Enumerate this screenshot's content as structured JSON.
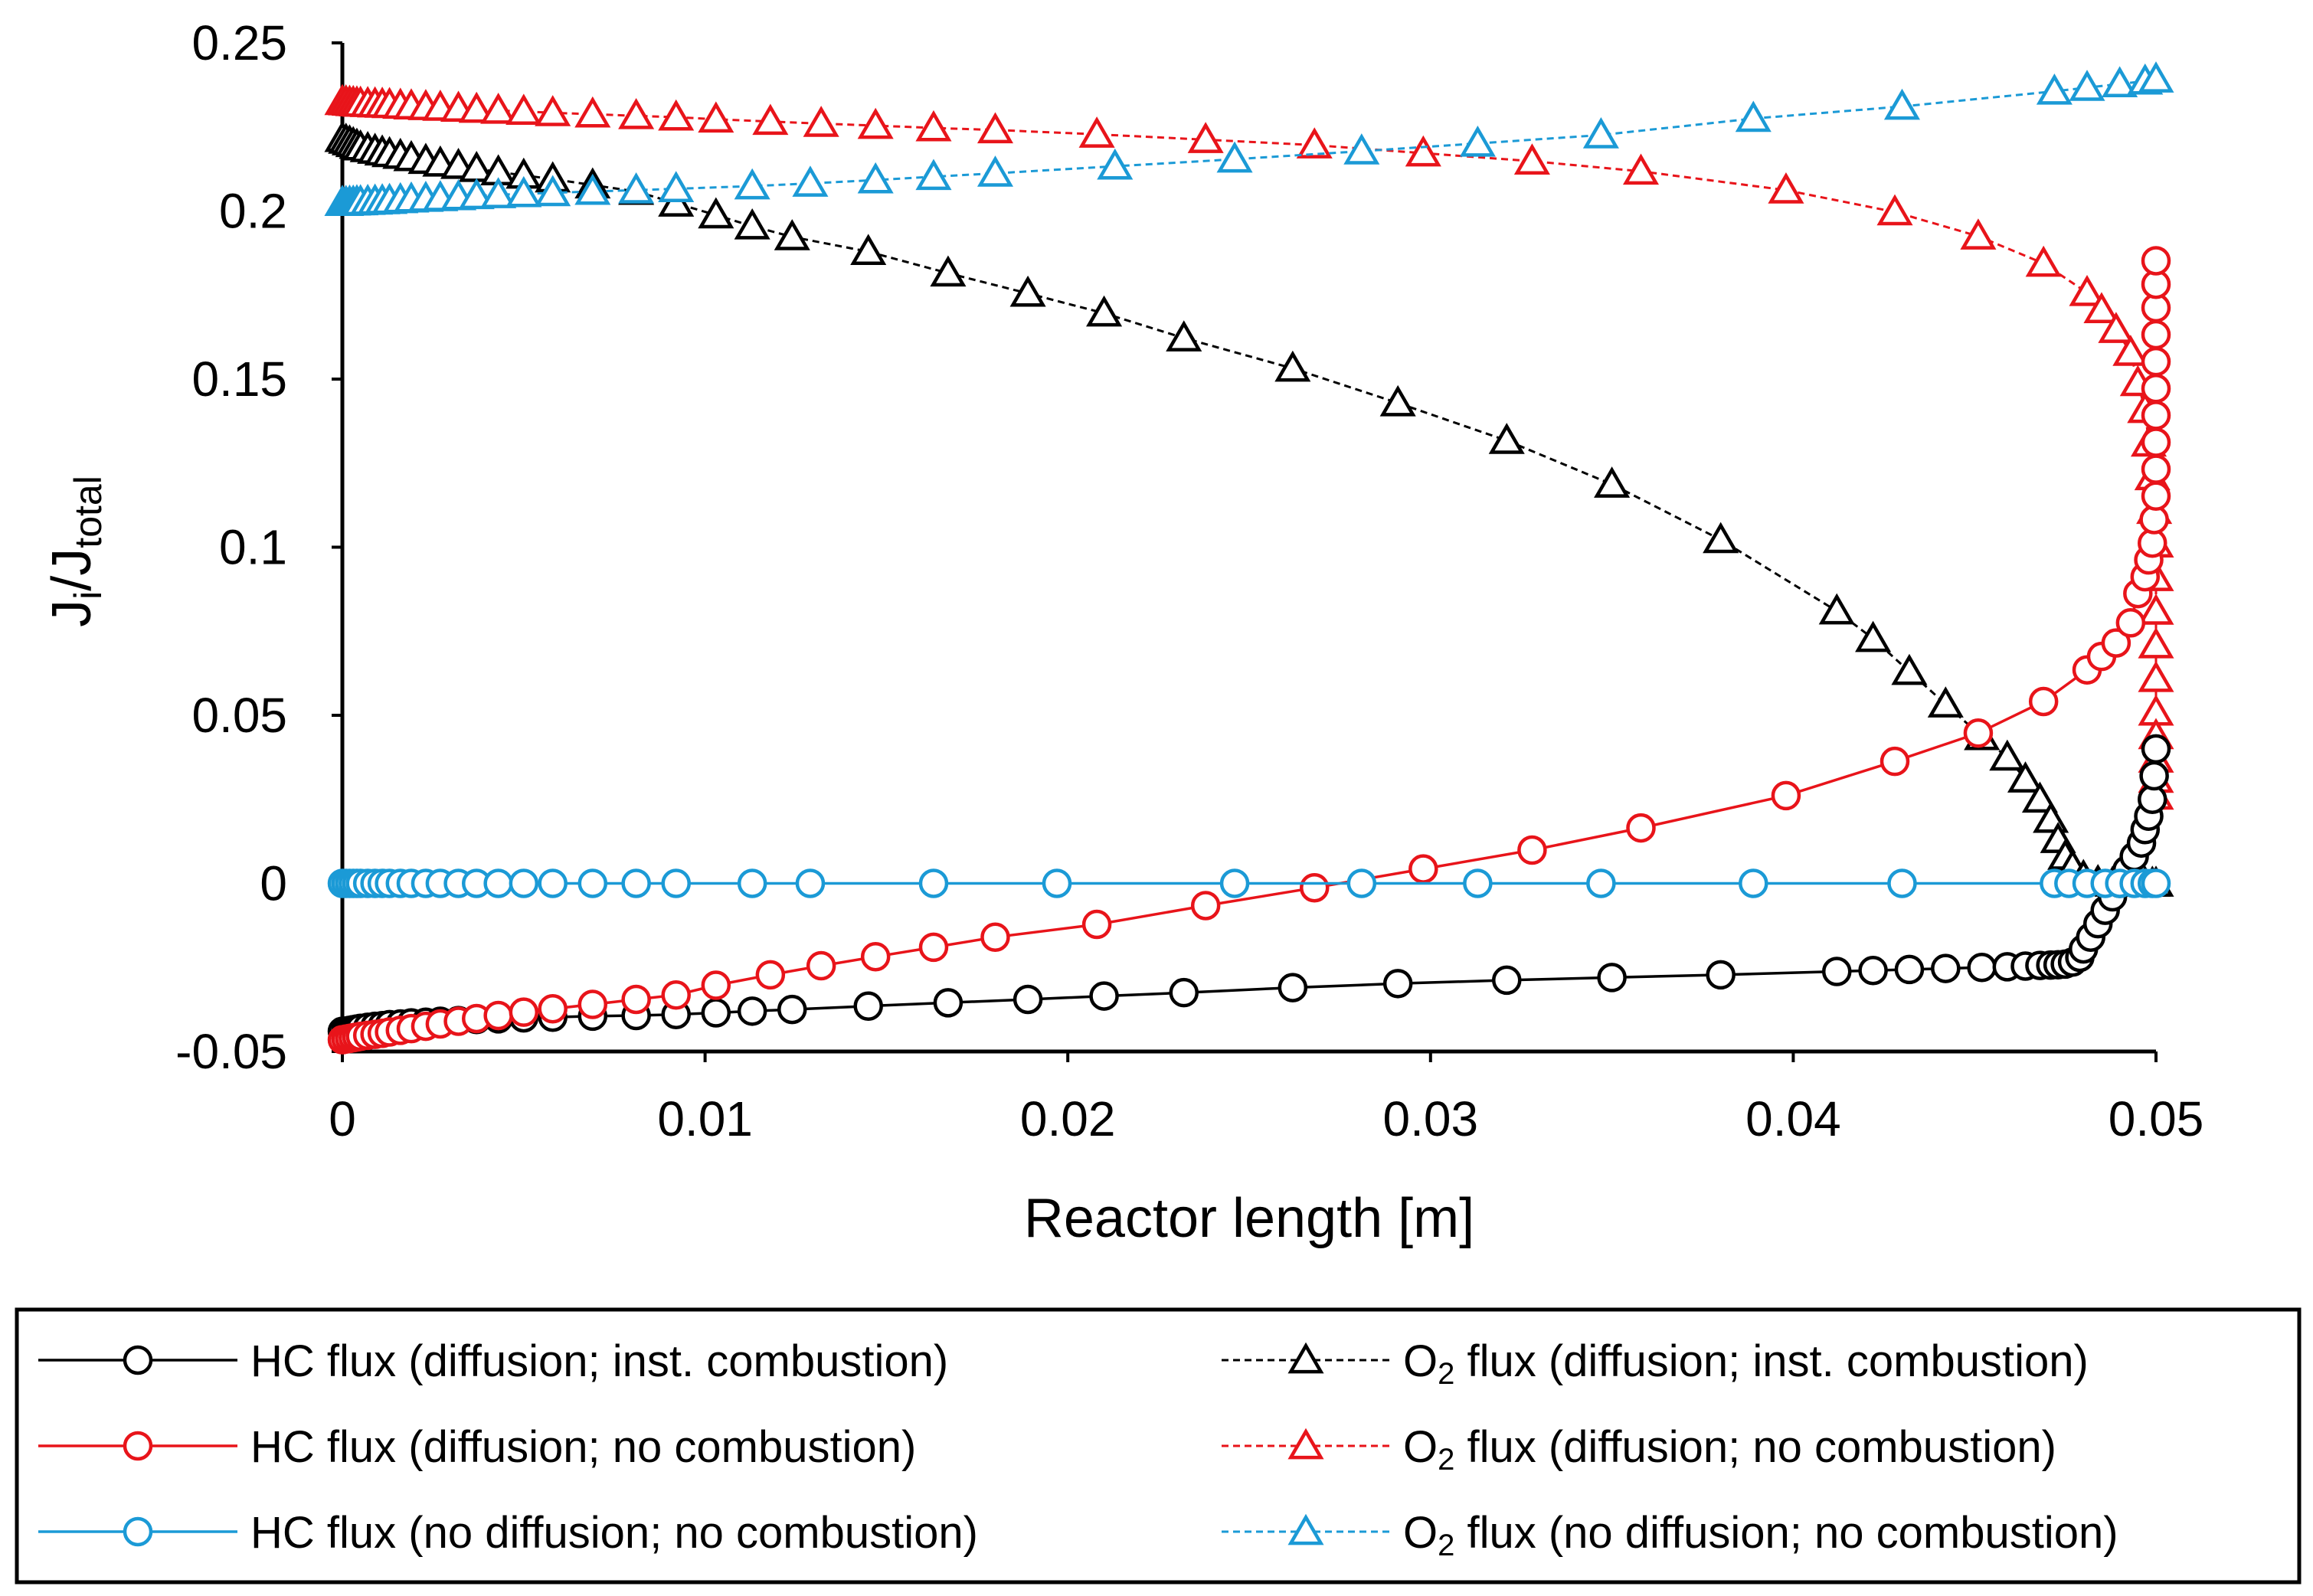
{
  "colors": {
    "inst": "#000000",
    "nocomb": "#e8141a",
    "nodiff": "#1b9ad6"
  },
  "chart_data": {
    "type": "line",
    "title": "",
    "xlabel": "Reactor length [m]",
    "ylabel_main": "J",
    "ylabel_sub1": "i",
    "ylabel_sep": "/J",
    "ylabel_sub2": "total",
    "xlim": [
      0,
      0.05
    ],
    "ylim": [
      -0.05,
      0.25
    ],
    "x_ticks": [
      0,
      0.01,
      0.02,
      0.03,
      0.04,
      0.05
    ],
    "x_tick_labels": [
      "0",
      "0.01",
      "0.02",
      "0.03",
      "0.04",
      "0.05"
    ],
    "y_ticks": [
      -0.05,
      0,
      0.05,
      0.1,
      0.15,
      0.2,
      0.25
    ],
    "y_tick_labels": [
      "-0.05",
      "0",
      "0.05",
      "0.1",
      "0.15",
      "0.2",
      "0.25"
    ],
    "grid": false,
    "legend_position": "bottom",
    "series": [
      {
        "name": "HC flux (diffusion; inst. combustion)",
        "species": "HC",
        "legend_rest": " flux (diffusion; inst. combustion)",
        "color_key": "inst",
        "marker": "circle",
        "line": "solid",
        "x": [
          0,
          0.0001,
          0.0002,
          0.0003,
          0.0004,
          0.0005,
          0.0007,
          0.0009,
          0.0011,
          0.0013,
          0.0016,
          0.0019,
          0.0023,
          0.0027,
          0.0032,
          0.0037,
          0.0043,
          0.005,
          0.0058,
          0.0069,
          0.0081,
          0.0092,
          0.0103,
          0.0113,
          0.0124,
          0.0145,
          0.0167,
          0.0189,
          0.021,
          0.0232,
          0.0262,
          0.0291,
          0.0321,
          0.035,
          0.038,
          0.0412,
          0.0422,
          0.0432,
          0.0442,
          0.0452,
          0.0459,
          0.0464,
          0.0468,
          0.0471,
          0.0473,
          0.0475,
          0.0477,
          0.0479,
          0.048,
          0.0482,
          0.0484,
          0.0486,
          0.0488,
          0.049,
          0.0492,
          0.0494,
          0.0496,
          0.0497,
          0.0498,
          0.0499,
          0.04995,
          0.05
        ],
        "y": [
          -0.044,
          -0.0439,
          -0.0437,
          -0.0435,
          -0.0433,
          -0.0431,
          -0.0428,
          -0.0425,
          -0.0423,
          -0.042,
          -0.0418,
          -0.0415,
          -0.0413,
          -0.041,
          -0.0408,
          -0.0405,
          -0.0403,
          -0.04,
          -0.0398,
          -0.0395,
          -0.0393,
          -0.039,
          -0.0385,
          -0.038,
          -0.0375,
          -0.0365,
          -0.0355,
          -0.0345,
          -0.0335,
          -0.0325,
          -0.031,
          -0.0298,
          -0.0288,
          -0.028,
          -0.0272,
          -0.0262,
          -0.0259,
          -0.0256,
          -0.0253,
          -0.025,
          -0.0248,
          -0.0246,
          -0.0244,
          -0.0243,
          -0.0242,
          -0.024,
          -0.0234,
          -0.022,
          -0.0195,
          -0.016,
          -0.012,
          -0.008,
          -0.004,
          0.0,
          0.004,
          0.008,
          0.012,
          0.016,
          0.02,
          0.025,
          0.032,
          0.04
        ]
      },
      {
        "name": "HC flux (diffusion; no combustion)",
        "species": "HC",
        "legend_rest": " flux (diffusion; no combustion)",
        "color_key": "nocomb",
        "marker": "circle",
        "line": "solid",
        "x": [
          0,
          0.0001,
          0.0002,
          0.0003,
          0.0004,
          0.0005,
          0.0007,
          0.0009,
          0.0011,
          0.0013,
          0.0016,
          0.0019,
          0.0023,
          0.0027,
          0.0032,
          0.0037,
          0.0043,
          0.005,
          0.0058,
          0.0069,
          0.0081,
          0.0092,
          0.0103,
          0.0118,
          0.0132,
          0.0147,
          0.0163,
          0.018,
          0.0208,
          0.0238,
          0.0268,
          0.0298,
          0.0328,
          0.0358,
          0.0398,
          0.0428,
          0.0451,
          0.0469,
          0.0481,
          0.0485,
          0.0489,
          0.0493,
          0.0495,
          0.0497,
          0.0498,
          0.0499,
          0.04995,
          0.05,
          0.05,
          0.05,
          0.05,
          0.05,
          0.05,
          0.05,
          0.05,
          0.05,
          0.05
        ],
        "y": [
          -0.0465,
          -0.0463,
          -0.0461,
          -0.0459,
          -0.0457,
          -0.0455,
          -0.0452,
          -0.0449,
          -0.0446,
          -0.0442,
          -0.0437,
          -0.0432,
          -0.0425,
          -0.0418,
          -0.041,
          -0.0402,
          -0.0393,
          -0.0383,
          -0.0373,
          -0.036,
          -0.0345,
          -0.0332,
          -0.0303,
          -0.0272,
          -0.0245,
          -0.0218,
          -0.019,
          -0.016,
          -0.0122,
          -0.0066,
          -0.0013,
          0.0043,
          0.0099,
          0.0165,
          0.0261,
          0.0363,
          0.0447,
          0.0541,
          0.0635,
          0.0675,
          0.0715,
          0.0775,
          0.0862,
          0.0912,
          0.0962,
          0.1012,
          0.1082,
          0.1152,
          0.1232,
          0.1312,
          0.1392,
          0.1472,
          0.1552,
          0.1632,
          0.1712,
          0.1782,
          0.1852
        ]
      },
      {
        "name": "HC flux (no diffusion; no combustion)",
        "species": "HC",
        "legend_rest": " flux (no diffusion; no combustion)",
        "color_key": "nodiff",
        "marker": "circle",
        "line": "solid",
        "x": [
          0,
          0.0001,
          0.0002,
          0.0003,
          0.0004,
          0.0005,
          0.0007,
          0.0009,
          0.0011,
          0.0013,
          0.0016,
          0.0019,
          0.0023,
          0.0027,
          0.0032,
          0.0037,
          0.0043,
          0.005,
          0.0058,
          0.0069,
          0.0081,
          0.0092,
          0.0113,
          0.0129,
          0.0163,
          0.0197,
          0.0246,
          0.0281,
          0.0313,
          0.0347,
          0.0389,
          0.043,
          0.0472,
          0.0476,
          0.0481,
          0.0486,
          0.049,
          0.0494,
          0.0497,
          0.0499,
          0.05
        ],
        "y": [
          0,
          0,
          0,
          0,
          0,
          0,
          0,
          0,
          0,
          0,
          0,
          0,
          0,
          0,
          0,
          0,
          0,
          0,
          0,
          0,
          0,
          0,
          0,
          0,
          0,
          0,
          0,
          0,
          0,
          0,
          0,
          0,
          0,
          0,
          0,
          0,
          0,
          0,
          0,
          0,
          0
        ]
      },
      {
        "name": "O2 flux (diffusion; inst. combustion)",
        "species": "O",
        "legend_rest": " flux (diffusion; inst. combustion)",
        "color_key": "inst",
        "marker": "triangle",
        "line": "dashed",
        "x": [
          0,
          0.0001,
          0.0002,
          0.0003,
          0.0004,
          0.0005,
          0.0007,
          0.0009,
          0.0011,
          0.0013,
          0.0016,
          0.0019,
          0.0023,
          0.0027,
          0.0032,
          0.0037,
          0.0043,
          0.005,
          0.0058,
          0.0069,
          0.0081,
          0.0092,
          0.0103,
          0.0113,
          0.0124,
          0.0145,
          0.0167,
          0.0189,
          0.021,
          0.0232,
          0.0262,
          0.0291,
          0.0321,
          0.035,
          0.038,
          0.0412,
          0.0422,
          0.0432,
          0.0442,
          0.0452,
          0.0459,
          0.0464,
          0.0468,
          0.0471,
          0.0473,
          0.0475,
          0.0477,
          0.048,
          0.0484,
          0.0488,
          0.0492,
          0.0495,
          0.0497,
          0.0499,
          0.05
        ],
        "y": [
          0.2215,
          0.221,
          0.2205,
          0.22,
          0.2195,
          0.219,
          0.2185,
          0.218,
          0.2175,
          0.217,
          0.2165,
          0.2158,
          0.215,
          0.2142,
          0.2135,
          0.2126,
          0.2116,
          0.2106,
          0.2095,
          0.2077,
          0.2058,
          0.2023,
          0.1988,
          0.1955,
          0.1923,
          0.1879,
          0.1815,
          0.1755,
          0.1696,
          0.1622,
          0.1532,
          0.1429,
          0.1317,
          0.1187,
          0.1022,
          0.081,
          0.0728,
          0.063,
          0.0533,
          0.0436,
          0.0375,
          0.031,
          0.025,
          0.019,
          0.013,
          0.008,
          0.005,
          0.002,
          0.0005,
          0.0,
          0.0,
          0.0,
          0.0,
          0.0,
          0.0
        ]
      },
      {
        "name": "O2 flux (diffusion; no combustion)",
        "species": "O",
        "legend_rest": " flux (diffusion; no combustion)",
        "color_key": "nocomb",
        "marker": "triangle",
        "line": "dashed",
        "x": [
          0,
          0.0001,
          0.0002,
          0.0003,
          0.0004,
          0.0005,
          0.0007,
          0.0009,
          0.0011,
          0.0013,
          0.0016,
          0.0019,
          0.0023,
          0.0027,
          0.0032,
          0.0037,
          0.0043,
          0.005,
          0.0058,
          0.0069,
          0.0081,
          0.0092,
          0.0103,
          0.0118,
          0.0132,
          0.0147,
          0.0163,
          0.018,
          0.0208,
          0.0238,
          0.0268,
          0.0298,
          0.0328,
          0.0358,
          0.0398,
          0.0428,
          0.0451,
          0.0469,
          0.0481,
          0.0485,
          0.0489,
          0.0493,
          0.0495,
          0.0497,
          0.0498,
          0.0499,
          0.04995,
          0.05,
          0.05,
          0.05,
          0.05,
          0.05,
          0.05,
          0.05,
          0.05,
          0.05,
          0.05
        ],
        "y": [
          0.2325,
          0.2324,
          0.2323,
          0.2322,
          0.2321,
          0.232,
          0.2319,
          0.2318,
          0.2317,
          0.2316,
          0.2314,
          0.2312,
          0.231,
          0.2308,
          0.2305,
          0.2302,
          0.2299,
          0.2296,
          0.2292,
          0.2288,
          0.2283,
          0.2279,
          0.2273,
          0.2266,
          0.226,
          0.2254,
          0.2247,
          0.2241,
          0.2228,
          0.2212,
          0.2196,
          0.2172,
          0.2148,
          0.2118,
          0.2062,
          0.1997,
          0.1925,
          0.1844,
          0.1757,
          0.1706,
          0.1647,
          0.1579,
          0.1489,
          0.1409,
          0.1309,
          0.1209,
          0.1109,
          0.1009,
          0.0909,
          0.0809,
          0.0709,
          0.0609,
          0.0509,
          0.0439,
          0.0369,
          0.0309,
          0.0259
        ]
      },
      {
        "name": "O2 flux (no diffusion; no combustion)",
        "species": "O",
        "legend_rest": " flux (no diffusion; no combustion)",
        "color_key": "nodiff",
        "marker": "triangle",
        "line": "dashed",
        "x": [
          0,
          0.0001,
          0.0002,
          0.0003,
          0.0004,
          0.0005,
          0.0007,
          0.0009,
          0.0011,
          0.0013,
          0.0016,
          0.0019,
          0.0023,
          0.0027,
          0.0032,
          0.0037,
          0.0043,
          0.005,
          0.0058,
          0.0069,
          0.0081,
          0.0092,
          0.0113,
          0.0129,
          0.0147,
          0.0163,
          0.018,
          0.0213,
          0.0246,
          0.0281,
          0.0313,
          0.0347,
          0.0389,
          0.043,
          0.0472,
          0.0481,
          0.049,
          0.0497,
          0.05
        ],
        "y": [
          0.2025,
          0.2025,
          0.2026,
          0.2026,
          0.2027,
          0.2027,
          0.2028,
          0.2029,
          0.203,
          0.2031,
          0.2033,
          0.2035,
          0.2037,
          0.2039,
          0.2042,
          0.2045,
          0.2048,
          0.2051,
          0.2054,
          0.2058,
          0.2062,
          0.2066,
          0.2074,
          0.2082,
          0.2092,
          0.2102,
          0.2112,
          0.2133,
          0.2154,
          0.2178,
          0.2201,
          0.2226,
          0.2275,
          0.2311,
          0.2356,
          0.2367,
          0.2378,
          0.2386,
          0.2392
        ]
      }
    ]
  }
}
